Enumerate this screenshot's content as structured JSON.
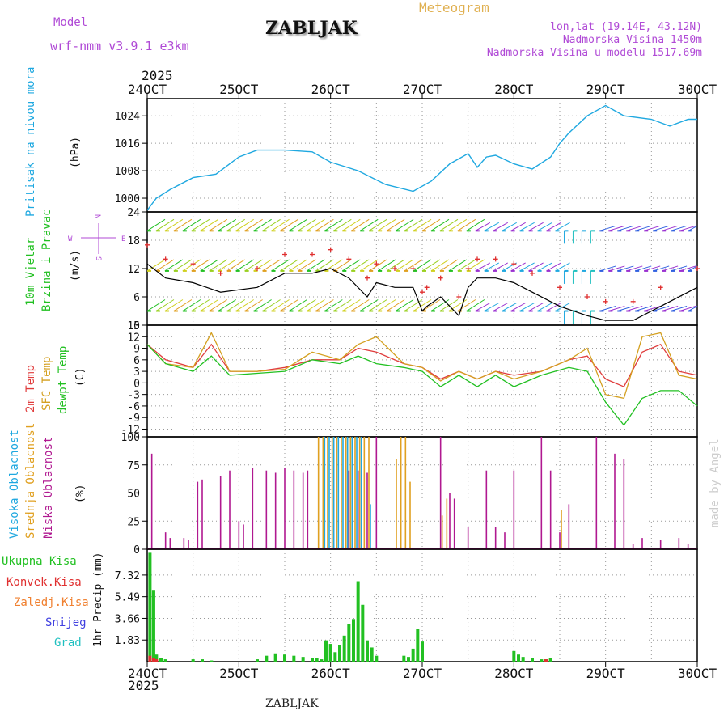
{
  "header": {
    "model_label": "Model",
    "model_name": "wrf-nmm_v3.9.1  e3km",
    "station": "ZABLJAK",
    "product": "Meteogram",
    "coords": "lon,lat (19.14E, 43.12N)",
    "altitude": "Nadmorska Visina 1450m",
    "model_altitude": "Nadmorska Visina u modelu 1517.69m",
    "footer_station": "ZABLJAK",
    "watermark": "made by Angel"
  },
  "axes": {
    "year_top": "2025",
    "year_bottom": "2025",
    "dates": [
      "24OCT",
      "25OCT",
      "26OCT",
      "27OCT",
      "28OCT",
      "29OCT",
      "30OCT"
    ]
  },
  "panel_labels": {
    "pressure": {
      "title": "Pritisak na nivou mora",
      "unit": "(hPa)"
    },
    "wind": {
      "title1": "10m Vjetar",
      "title2": "Brzina i Pravac",
      "unit": "(m/s)",
      "compass_n": "N",
      "compass_s": "S",
      "compass_w": "W",
      "compass_e": "E"
    },
    "temp": {
      "t2m": "2m Temp",
      "sfc": "SFC Temp",
      "dew": "dewpt Temp",
      "unit": "(C)"
    },
    "cloud": {
      "high": "Visoka Oblacnost",
      "mid": "Srednja Oblacnost",
      "low": "Niska Oblacnost",
      "unit": "(%)"
    },
    "precip": {
      "total": "Ukupna Kisa",
      "conv": "Konvek.Kisa",
      "frozen": "Zaledj.Kisa",
      "snow": "Snijeg",
      "graupel": "Grad",
      "unit": "1hr Precip (mm)"
    }
  },
  "colors": {
    "pressure": "#1fa8e0",
    "t2m": "#e03c3c",
    "sfc": "#d4a020",
    "dew": "#22c022",
    "wind_line": "#000000",
    "gust_marker": "#e03030",
    "cloud_low": "#b01890",
    "cloud_mid": "#e0a020",
    "cloud_high": "#20a8e0",
    "precip_total": "#22c022",
    "precip_conv": "#e03030",
    "label_green": "#22c022",
    "label_red": "#e03030",
    "label_orange": "#f08030",
    "label_blue": "#4040e0",
    "label_cyan": "#20c0c0",
    "label_purple": "#b04ad6"
  },
  "chart_data": [
    {
      "type": "line",
      "name": "pressure",
      "ylim": [
        996,
        1029
      ],
      "yticks": [
        "1000",
        "1008",
        "1016",
        "1024"
      ],
      "x_days": [
        0,
        0.1,
        0.25,
        0.5,
        0.75,
        1,
        1.2,
        1.5,
        1.8,
        2,
        2.3,
        2.6,
        2.9,
        3.1,
        3.3,
        3.5,
        3.6,
        3.7,
        3.8,
        4,
        4.2,
        4.4,
        4.5,
        4.6,
        4.8,
        5,
        5.2,
        5.5,
        5.7,
        5.9,
        6
      ],
      "values": [
        996.5,
        1000,
        1002.5,
        1006,
        1007,
        1012,
        1014,
        1014,
        1013.5,
        1010.5,
        1008,
        1004,
        1002,
        1005,
        1010,
        1013,
        1009,
        1012,
        1012.5,
        1010,
        1008.5,
        1012,
        1016,
        1019,
        1024,
        1027,
        1024,
        1023,
        1021,
        1023,
        1023
      ]
    },
    {
      "type": "line",
      "name": "wind",
      "ylim": [
        0,
        24
      ],
      "yticks": [
        "0",
        "6",
        "12",
        "18",
        "24"
      ],
      "x_days": [
        0,
        0.2,
        0.5,
        0.8,
        1.2,
        1.5,
        1.8,
        2,
        2.2,
        2.4,
        2.5,
        2.7,
        2.9,
        3,
        3.05,
        3.2,
        3.4,
        3.5,
        3.6,
        3.8,
        4,
        4.2,
        4.5,
        4.8,
        5,
        5.3,
        5.6,
        6
      ],
      "values": [
        13,
        10,
        9,
        7,
        8,
        11,
        11,
        12,
        10,
        6,
        9,
        8,
        8,
        3,
        4,
        6,
        2,
        8,
        10,
        10,
        9,
        7,
        4,
        2,
        1,
        1,
        4,
        8
      ]
    },
    {
      "type": "line",
      "name": "temperature",
      "ylim": [
        -14,
        15
      ],
      "yticks": [
        "-12",
        "-9",
        "-6",
        "-3",
        "0",
        "3",
        "6",
        "9",
        "12",
        "15"
      ],
      "x_days": [
        0,
        0.2,
        0.5,
        0.7,
        0.9,
        1.2,
        1.5,
        1.8,
        2.1,
        2.3,
        2.5,
        2.8,
        3,
        3.2,
        3.4,
        3.6,
        3.8,
        4,
        4.3,
        4.6,
        4.8,
        5,
        5.2,
        5.4,
        5.6,
        5.8,
        6
      ],
      "series": [
        {
          "name": "2m Temp",
          "values": [
            10,
            6,
            4,
            10,
            3,
            3,
            4,
            6,
            6,
            9,
            8,
            5,
            4,
            1,
            3,
            1,
            3,
            2,
            3,
            6,
            7,
            1,
            -1,
            8,
            10,
            3,
            2
          ]
        },
        {
          "name": "SFC Temp",
          "values": [
            10,
            5,
            4,
            13,
            3,
            3,
            3.5,
            8,
            6,
            10,
            12,
            5,
            4,
            0.5,
            3,
            1,
            3,
            1,
            3,
            6,
            9,
            -3,
            -4,
            12,
            13,
            2,
            1
          ]
        },
        {
          "name": "dewpt Temp",
          "values": [
            10,
            5,
            3,
            7,
            2,
            2.5,
            3,
            6,
            5,
            7,
            5,
            4,
            3,
            -1,
            2,
            -1,
            2,
            -1,
            2,
            4,
            3,
            -5,
            -11,
            -4,
            -2,
            -2,
            -6
          ]
        }
      ]
    },
    {
      "type": "bar",
      "name": "clouds",
      "ylim": [
        0,
        100
      ],
      "yticks": [
        "0",
        "25",
        "50",
        "75",
        "100"
      ],
      "series": [
        {
          "name": "Niska Oblacnost",
          "x_days": [
            0.05,
            0.2,
            0.25,
            0.4,
            0.45,
            0.55,
            0.6,
            0.8,
            0.9,
            1.0,
            1.05,
            1.15,
            1.3,
            1.4,
            1.5,
            1.6,
            1.7,
            1.75,
            2.2,
            2.3,
            2.4,
            2.5,
            3.2,
            3.3,
            3.35,
            3.5,
            3.7,
            3.8,
            3.9,
            4.0,
            4.3,
            4.4,
            4.5,
            4.6,
            4.9,
            5.1,
            5.2,
            5.3,
            5.4,
            5.6,
            5.8,
            5.9
          ],
          "values": [
            85,
            15,
            10,
            10,
            8,
            60,
            62,
            65,
            70,
            25,
            22,
            72,
            70,
            68,
            72,
            70,
            68,
            70,
            70,
            70,
            68,
            100,
            100,
            50,
            45,
            20,
            70,
            20,
            15,
            70,
            100,
            70,
            15,
            40,
            100,
            85,
            80,
            5,
            10,
            8,
            10,
            5
          ]
        },
        {
          "name": "Srednja Oblacnost",
          "x_days": [
            1.85,
            1.9,
            1.95,
            2.0,
            2.05,
            2.1,
            2.15,
            2.2,
            2.25,
            2.3,
            2.35,
            2.4,
            2.7,
            2.75,
            2.8,
            2.85,
            3.2,
            3.25,
            4.5
          ],
          "values": [
            100,
            100,
            100,
            100,
            100,
            100,
            100,
            100,
            100,
            100,
            100,
            100,
            80,
            100,
            100,
            60,
            30,
            45,
            35
          ]
        },
        {
          "name": "Visoka Oblacnost",
          "x_days": [
            1.9,
            1.95,
            2.0,
            2.05,
            2.1,
            2.15,
            2.2,
            2.25,
            2.3,
            2.4
          ],
          "values": [
            100,
            100,
            100,
            100,
            100,
            100,
            100,
            100,
            100,
            40
          ]
        }
      ]
    },
    {
      "type": "bar",
      "name": "precipitation",
      "ylim": [
        0,
        9.5
      ],
      "yticks": [
        "1.83",
        "3.66",
        "5.49",
        "7.32"
      ],
      "series": [
        {
          "name": "Ukupna Kisa",
          "x_days": [
            0.03,
            0.07,
            0.1,
            0.15,
            0.2,
            0.5,
            0.6,
            0.7,
            1.2,
            1.3,
            1.4,
            1.5,
            1.6,
            1.7,
            1.8,
            1.85,
            1.9,
            1.95,
            2.0,
            2.05,
            2.1,
            2.15,
            2.2,
            2.25,
            2.3,
            2.35,
            2.4,
            2.45,
            2.5,
            2.8,
            2.85,
            2.9,
            2.95,
            3.0,
            4.0,
            4.05,
            4.1,
            4.2,
            4.3,
            4.35,
            4.4
          ],
          "values": [
            9.2,
            6.0,
            0.6,
            0.3,
            0.2,
            0.2,
            0.2,
            0.1,
            0.2,
            0.5,
            0.7,
            0.6,
            0.5,
            0.4,
            0.3,
            0.3,
            0.2,
            1.8,
            1.5,
            0.8,
            1.4,
            2.2,
            3.2,
            3.6,
            6.8,
            4.8,
            1.8,
            1.2,
            0.5,
            0.5,
            0.4,
            1.1,
            2.8,
            1.7,
            0.9,
            0.6,
            0.4,
            0.3,
            0.2,
            0.2,
            0.3
          ]
        },
        {
          "name": "Konvek.Kisa",
          "x_days": [
            0.03,
            0.07,
            0.1,
            4.35
          ],
          "values": [
            0.5,
            0.3,
            0.2,
            0.2
          ]
        }
      ]
    }
  ]
}
